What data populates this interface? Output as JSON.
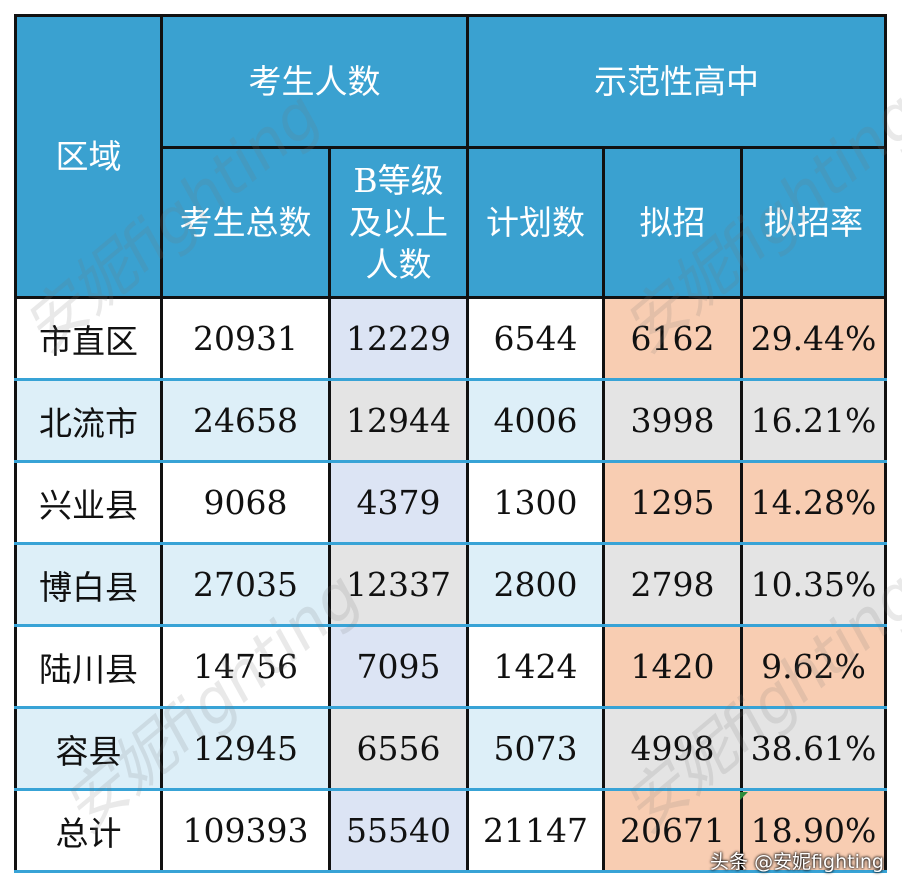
{
  "header": {
    "region": "区域",
    "group_students": "考生人数",
    "group_schools": "示范性高中",
    "col_total": "考生总数",
    "col_b_line1": "B等级",
    "col_b_line2": "及以上",
    "col_b_line3": "人数",
    "col_plan": "计划数",
    "col_intend": "拟招",
    "col_rate": "拟招率"
  },
  "rows": [
    {
      "region": "市直区",
      "total": "20931",
      "b": "12229",
      "plan": "6544",
      "intend": "6162",
      "rate": "29.44%"
    },
    {
      "region": "北流市",
      "total": "24658",
      "b": "12944",
      "plan": "4006",
      "intend": "3998",
      "rate": "16.21%"
    },
    {
      "region": "兴业县",
      "total": "9068",
      "b": "4379",
      "plan": "1300",
      "intend": "1295",
      "rate": "14.28%"
    },
    {
      "region": "博白县",
      "total": "27035",
      "b": "12337",
      "plan": "2800",
      "intend": "2798",
      "rate": "10.35%"
    },
    {
      "region": "陆川县",
      "total": "14756",
      "b": "7095",
      "plan": "1424",
      "intend": "1420",
      "rate": "9.62%"
    },
    {
      "region": "容县",
      "total": "12945",
      "b": "6556",
      "plan": "5073",
      "intend": "4998",
      "rate": "38.61%"
    },
    {
      "region": "总计",
      "total": "109393",
      "b": "55540",
      "plan": "21147",
      "intend": "20671",
      "rate": "18.90%"
    }
  ],
  "watermark": "安妮fighting",
  "credit": "头条 @安妮fighting",
  "colors": {
    "header_blue": "#3aa1d0",
    "row_light_blue": "#ddeff8",
    "col_lavender": "#dce4f4",
    "col_gray": "#e4e4e4",
    "col_peach": "#f8cdb2"
  }
}
